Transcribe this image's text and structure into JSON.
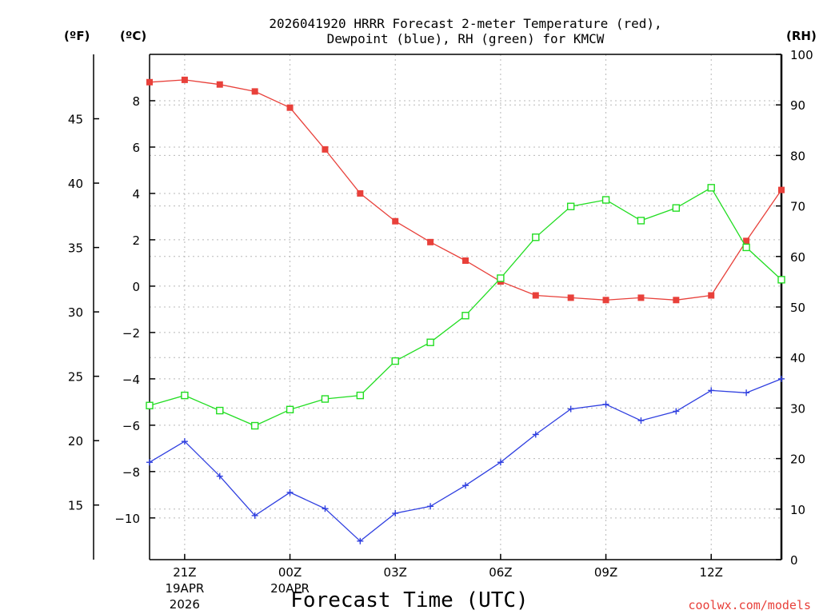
{
  "chart_data": {
    "type": "line",
    "title_line1": "2026041920 HRRR Forecast 2-meter Temperature (red),",
    "title_line2": "Dewpoint (blue), RH (green) for KMCW",
    "unit_labels": {
      "fahrenheit": "(ºF)",
      "celsius": "(ºC)",
      "rh": "(RH)"
    },
    "xlabel": "Forecast Time (UTC)",
    "credit": "coolwx.com/models",
    "x_hours": [
      0,
      1,
      2,
      3,
      4,
      5,
      6,
      7,
      8,
      9,
      10,
      11,
      12,
      13,
      14,
      15,
      16,
      17,
      18
    ],
    "x_ticks": [
      {
        "hour": 1,
        "label": "21Z",
        "sub1": "19APR",
        "sub2": "2026"
      },
      {
        "hour": 4,
        "label": "00Z",
        "sub1": "20APR",
        "sub2": ""
      },
      {
        "hour": 7,
        "label": "03Z",
        "sub1": "",
        "sub2": ""
      },
      {
        "hour": 10,
        "label": "06Z",
        "sub1": "",
        "sub2": ""
      },
      {
        "hour": 13,
        "label": "09Z",
        "sub1": "",
        "sub2": ""
      },
      {
        "hour": 16,
        "label": "12Z",
        "sub1": "",
        "sub2": ""
      }
    ],
    "y_celsius_range": [
      -11.8,
      10
    ],
    "y_celsius_ticks": [
      {
        "value": 8,
        "label": "8"
      },
      {
        "value": 6,
        "label": "6"
      },
      {
        "value": 4,
        "label": "4"
      },
      {
        "value": 2,
        "label": "2"
      },
      {
        "value": 0,
        "label": "0"
      },
      {
        "value": -2,
        "label": "−2"
      },
      {
        "value": -4,
        "label": "−4"
      },
      {
        "value": -6,
        "label": "−6"
      },
      {
        "value": -8,
        "label": "−8"
      },
      {
        "value": -10,
        "label": "−10"
      }
    ],
    "y_fahrenheit_ticks": [
      {
        "value": 45,
        "label": "45"
      },
      {
        "value": 40,
        "label": "40"
      },
      {
        "value": 35,
        "label": "35"
      },
      {
        "value": 30,
        "label": "30"
      },
      {
        "value": 25,
        "label": "25"
      },
      {
        "value": 20,
        "label": "20"
      },
      {
        "value": 15,
        "label": "15"
      }
    ],
    "y_rh_range": [
      0,
      100
    ],
    "y_rh_ticks": [
      {
        "value": 100,
        "label": "100"
      },
      {
        "value": 90,
        "label": "90"
      },
      {
        "value": 80,
        "label": "80"
      },
      {
        "value": 70,
        "label": "70"
      },
      {
        "value": 60,
        "label": "60"
      },
      {
        "value": 50,
        "label": "50"
      },
      {
        "value": 40,
        "label": "40"
      },
      {
        "value": 30,
        "label": "30"
      },
      {
        "value": 20,
        "label": "20"
      },
      {
        "value": 10,
        "label": "10"
      },
      {
        "value": 0,
        "label": "0"
      }
    ],
    "grid": true,
    "series": [
      {
        "name": "2-meter Temperature",
        "unit": "C",
        "axis": "celsius",
        "color": "#e8403a",
        "marker": "filled-square",
        "values": [
          8.8,
          8.9,
          8.7,
          8.4,
          7.7,
          5.9,
          4.0,
          2.8,
          1.9,
          1.1,
          0.2,
          -0.4,
          -0.5,
          -0.6,
          -0.5,
          -0.6,
          -0.4,
          1.95,
          4.15
        ]
      },
      {
        "name": "Dewpoint",
        "unit": "C",
        "axis": "celsius",
        "color": "#2f3fe0",
        "marker": "plus",
        "values": [
          -7.6,
          -6.7,
          -8.2,
          -9.9,
          -8.9,
          -9.6,
          -11.0,
          -9.8,
          -9.5,
          -8.6,
          -7.6,
          -6.4,
          -5.3,
          -5.1,
          -5.8,
          -5.4,
          -4.5,
          -4.6,
          -4.0
        ]
      },
      {
        "name": "Relative Humidity",
        "unit": "%",
        "axis": "rh",
        "color": "#22dd22",
        "marker": "open-square",
        "values": [
          30.5,
          32.5,
          29.5,
          26.5,
          29.7,
          31.8,
          32.5,
          39.3,
          43.0,
          48.3,
          55.7,
          63.8,
          69.9,
          71.2,
          67.1,
          69.6,
          73.6,
          61.8,
          55.4
        ]
      }
    ]
  }
}
